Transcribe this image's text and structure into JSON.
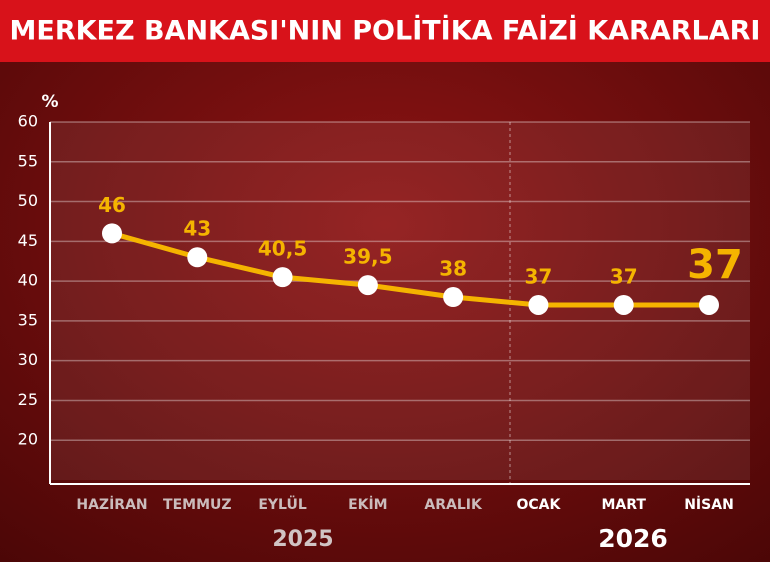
{
  "chart_data": {
    "type": "line",
    "title": "MERKEZ BANKASI'NIN POLİTİKA FAİZİ KARARLARI",
    "y_label": "%",
    "categories": [
      "HAZİRAN",
      "TEMMUZ",
      "EYLÜL",
      "EKİM",
      "ARALIK",
      "OCAK",
      "MART",
      "NİSAN"
    ],
    "values": [
      46,
      43,
      40.5,
      39.5,
      38,
      37,
      37,
      37
    ],
    "value_labels": [
      "46",
      "43",
      "40,5",
      "39,5",
      "38",
      "37",
      "37",
      "37"
    ],
    "year_labels": [
      "2025",
      "2026"
    ],
    "color": "#f5b400",
    "ylim": [
      15,
      60
    ],
    "yticks": [
      20,
      25,
      30,
      35,
      40,
      45,
      50,
      55,
      60
    ],
    "grid": true
  }
}
